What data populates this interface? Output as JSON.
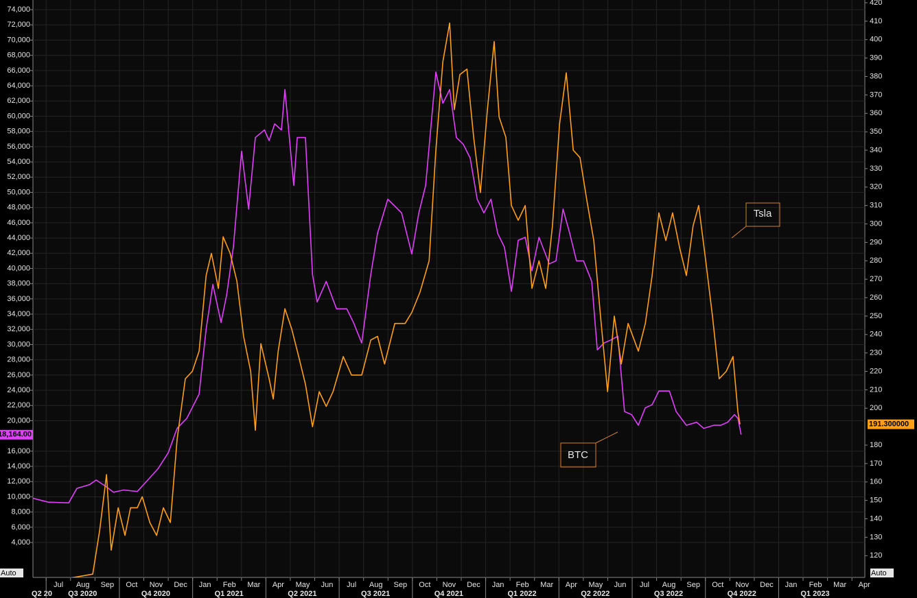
{
  "chart_data": {
    "type": "line",
    "series": [
      {
        "name": "BTC",
        "color": "#e040fb",
        "axis": "y",
        "last_value_label": "18,164.00",
        "x": [
          2020.456,
          2020.507,
          2020.577,
          2020.605,
          2020.648,
          2020.671,
          2020.706,
          2020.73,
          2020.765,
          2020.811,
          2020.847,
          2020.882,
          2020.917,
          2020.947,
          2020.98,
          2021.022,
          2021.046,
          2021.069,
          2021.097,
          2021.116,
          2021.139,
          2021.167,
          2021.191,
          2021.214,
          2021.245,
          2021.261,
          2021.28,
          2021.303,
          2021.315,
          2021.345,
          2021.357,
          2021.385,
          2021.409,
          2021.425,
          2021.456,
          2021.491,
          2021.526,
          2021.549,
          2021.577,
          2021.608,
          2021.631,
          2021.666,
          2021.69,
          2021.713,
          2021.748,
          2021.772,
          2021.795,
          2021.83,
          2021.854,
          2021.877,
          2021.9,
          2021.924,
          2021.947,
          2021.971,
          2021.994,
          2022.018,
          2022.041,
          2022.064,
          2022.088,
          2022.111,
          2022.135,
          2022.158,
          2022.182,
          2022.217,
          2022.24,
          2022.264,
          2022.287,
          2022.31,
          2022.334,
          2022.362,
          2022.381,
          2022.404,
          2022.427,
          2022.451,
          2022.474,
          2022.498,
          2022.521,
          2022.545,
          2022.568,
          2022.591,
          2022.627,
          2022.65,
          2022.685,
          2022.72,
          2022.744,
          2022.779,
          2022.802,
          2022.826,
          2022.849,
          2022.861,
          2022.872
        ],
        "values": [
          9800,
          9300,
          9200,
          11100,
          11600,
          12200,
          11300,
          10600,
          10900,
          10700,
          12200,
          13700,
          15800,
          19000,
          20300,
          23500,
          32000,
          37900,
          32900,
          36500,
          42800,
          55400,
          47800,
          57200,
          58200,
          56800,
          59000,
          58200,
          63500,
          50900,
          57200,
          57200,
          39200,
          35600,
          38300,
          34700,
          34700,
          32900,
          30200,
          39200,
          44600,
          49100,
          48200,
          47300,
          41900,
          47300,
          50900,
          65800,
          61700,
          63500,
          57200,
          56300,
          54500,
          49100,
          47300,
          49100,
          44600,
          42800,
          37000,
          43700,
          44100,
          39700,
          44100,
          40600,
          41000,
          47800,
          44600,
          41000,
          41000,
          38300,
          29300,
          30200,
          30600,
          31100,
          21200,
          20800,
          19400,
          21700,
          22100,
          23900,
          23900,
          21200,
          19400,
          19800,
          19000,
          19400,
          19400,
          19800,
          20800,
          20300,
          18164
        ]
      },
      {
        "name": "Tsla",
        "color": "#ff9f1a",
        "axis": "y2",
        "last_value_label": "191.300000",
        "x": [
          2020.587,
          2020.659,
          2020.683,
          2020.706,
          2020.722,
          2020.746,
          2020.769,
          2020.788,
          2020.811,
          2020.828,
          2020.854,
          2020.877,
          2020.9,
          2020.924,
          2020.947,
          2020.975,
          2020.999,
          2021.022,
          2021.046,
          2021.064,
          2021.088,
          2021.104,
          2021.128,
          2021.151,
          2021.174,
          2021.198,
          2021.214,
          2021.233,
          2021.261,
          2021.275,
          2021.292,
          2021.315,
          2021.338,
          2021.362,
          2021.385,
          2021.409,
          2021.432,
          2021.456,
          2021.479,
          2021.514,
          2021.542,
          2021.577,
          2021.608,
          2021.631,
          2021.655,
          2021.69,
          2021.725,
          2021.748,
          2021.776,
          2021.807,
          2021.83,
          2021.854,
          2021.877,
          2021.893,
          2021.912,
          2021.936,
          2021.959,
          2021.982,
          2022.006,
          2022.029,
          2022.046,
          2022.069,
          2022.088,
          2022.111,
          2022.135,
          2022.158,
          2022.182,
          2022.205,
          2022.228,
          2022.252,
          2022.275,
          2022.299,
          2022.322,
          2022.345,
          2022.369,
          2022.392,
          2022.416,
          2022.439,
          2022.463,
          2022.486,
          2022.521,
          2022.545,
          2022.568,
          2022.591,
          2022.615,
          2022.638,
          2022.662,
          2022.685,
          2022.708,
          2022.727,
          2022.751,
          2022.774,
          2022.797,
          2022.821,
          2022.844,
          2022.861,
          2022.868
        ],
        "values": [
          108,
          110,
          134,
          164,
          123,
          146,
          131,
          146,
          146,
          152,
          138,
          131,
          146,
          138,
          183,
          216,
          220,
          231,
          272,
          284,
          265,
          293,
          284,
          269,
          239,
          220,
          188,
          235,
          216,
          205,
          231,
          254,
          243,
          228,
          213,
          190,
          209,
          201,
          209,
          228,
          218,
          218,
          237,
          239,
          224,
          246,
          246,
          252,
          263,
          280,
          340,
          388,
          409,
          362,
          381,
          384,
          347,
          317,
          362,
          399,
          358,
          347,
          310,
          302,
          310,
          265,
          280,
          265,
          299,
          354,
          382,
          340,
          336,
          313,
          291,
          250,
          209,
          250,
          224,
          246,
          231,
          246,
          272,
          306,
          291,
          306,
          287,
          272,
          299,
          310,
          280,
          250,
          216,
          220,
          228,
          198,
          191.3
        ]
      }
    ],
    "xlim": [
      2020.455,
      2023.294
    ],
    "ylim": [
      -590,
      75270
    ],
    "y2lim": [
      108.2,
      421.5
    ],
    "yticks": [
      {
        "value": 4000,
        "label": "4,000"
      },
      {
        "value": 6000,
        "label": "6,000"
      },
      {
        "value": 8000,
        "label": "8,000"
      },
      {
        "value": 10000,
        "label": "10,000"
      },
      {
        "value": 12000,
        "label": "12,000"
      },
      {
        "value": 14000,
        "label": "14,000"
      },
      {
        "value": 16000,
        "label": "16,000"
      },
      {
        "value": 20000,
        "label": "20,000"
      },
      {
        "value": 22000,
        "label": "22,000"
      },
      {
        "value": 24000,
        "label": "24,000"
      },
      {
        "value": 26000,
        "label": "26,000"
      },
      {
        "value": 28000,
        "label": "28,000"
      },
      {
        "value": 30000,
        "label": "30,000"
      },
      {
        "value": 32000,
        "label": "32,000"
      },
      {
        "value": 34000,
        "label": "34,000"
      },
      {
        "value": 36000,
        "label": "36,000"
      },
      {
        "value": 38000,
        "label": "38,000"
      },
      {
        "value": 40000,
        "label": "40,000"
      },
      {
        "value": 42000,
        "label": "42,000"
      },
      {
        "value": 44000,
        "label": "44,000"
      },
      {
        "value": 46000,
        "label": "46,000"
      },
      {
        "value": 48000,
        "label": "48,000"
      },
      {
        "value": 50000,
        "label": "50,000"
      },
      {
        "value": 52000,
        "label": "52,000"
      },
      {
        "value": 54000,
        "label": "54,000"
      },
      {
        "value": 56000,
        "label": "56,000"
      },
      {
        "value": 58000,
        "label": "58,000"
      },
      {
        "value": 60000,
        "label": "60,000"
      },
      {
        "value": 62000,
        "label": "62,000"
      },
      {
        "value": 64000,
        "label": "64,000"
      },
      {
        "value": 66000,
        "label": "66,000"
      },
      {
        "value": 68000,
        "label": "68,000"
      },
      {
        "value": 70000,
        "label": "70,000"
      },
      {
        "value": 72000,
        "label": "72,000"
      },
      {
        "value": 74000,
        "label": "74,000"
      }
    ],
    "y2ticks": [
      120,
      130,
      140,
      150,
      160,
      170,
      180,
      200,
      210,
      220,
      230,
      240,
      250,
      260,
      270,
      280,
      290,
      300,
      310,
      320,
      330,
      340,
      350,
      360,
      370,
      380,
      390,
      400,
      410,
      420
    ],
    "xticks": [
      {
        "value": 2020.5,
        "label": "Jul"
      },
      {
        "value": 2020.5833,
        "label": "Aug"
      },
      {
        "value": 2020.6667,
        "label": "Sep"
      },
      {
        "value": 2020.75,
        "label": "Oct"
      },
      {
        "value": 2020.8333,
        "label": "Nov"
      },
      {
        "value": 2020.9167,
        "label": "Dec"
      },
      {
        "value": 2021.0,
        "label": "Jan"
      },
      {
        "value": 2021.0833,
        "label": "Feb"
      },
      {
        "value": 2021.1667,
        "label": "Mar"
      },
      {
        "value": 2021.25,
        "label": "Apr"
      },
      {
        "value": 2021.3333,
        "label": "May"
      },
      {
        "value": 2021.4167,
        "label": "Jun"
      },
      {
        "value": 2021.5,
        "label": "Jul"
      },
      {
        "value": 2021.5833,
        "label": "Aug"
      },
      {
        "value": 2021.6667,
        "label": "Sep"
      },
      {
        "value": 2021.75,
        "label": "Oct"
      },
      {
        "value": 2021.8333,
        "label": "Nov"
      },
      {
        "value": 2021.9167,
        "label": "Dec"
      },
      {
        "value": 2022.0,
        "label": "Jan"
      },
      {
        "value": 2022.0833,
        "label": "Feb"
      },
      {
        "value": 2022.1667,
        "label": "Mar"
      },
      {
        "value": 2022.25,
        "label": "Apr"
      },
      {
        "value": 2022.3333,
        "label": "May"
      },
      {
        "value": 2022.4167,
        "label": "Jun"
      },
      {
        "value": 2022.5,
        "label": "Jul"
      },
      {
        "value": 2022.5833,
        "label": "Aug"
      },
      {
        "value": 2022.6667,
        "label": "Sep"
      },
      {
        "value": 2022.75,
        "label": "Oct"
      },
      {
        "value": 2022.8333,
        "label": "Nov"
      },
      {
        "value": 2022.9167,
        "label": "Dec"
      },
      {
        "value": 2023.0,
        "label": "Jan"
      },
      {
        "value": 2023.0833,
        "label": "Feb"
      },
      {
        "value": 2023.1667,
        "label": "Mar"
      },
      {
        "value": 2023.25,
        "label": "Apr"
      }
    ],
    "quarter_ticks": [
      {
        "value": 2020.25,
        "label": "Q2 20"
      },
      {
        "value": 2020.5,
        "label": "Q3 2020"
      },
      {
        "value": 2020.75,
        "label": "Q4 2020"
      },
      {
        "value": 2021.0,
        "label": "Q1 2021"
      },
      {
        "value": 2021.25,
        "label": "Q2 2021"
      },
      {
        "value": 2021.5,
        "label": "Q3 2021"
      },
      {
        "value": 2021.75,
        "label": "Q4 2021"
      },
      {
        "value": 2022.0,
        "label": "Q1 2022"
      },
      {
        "value": 2022.25,
        "label": "Q2 2022"
      },
      {
        "value": 2022.5,
        "label": "Q3 2022"
      },
      {
        "value": 2022.75,
        "label": "Q4 2022"
      },
      {
        "value": 2023.0,
        "label": "Q1 2023"
      }
    ],
    "axis_mode_labels": [
      "Auto",
      "Auto"
    ],
    "grid": true
  }
}
